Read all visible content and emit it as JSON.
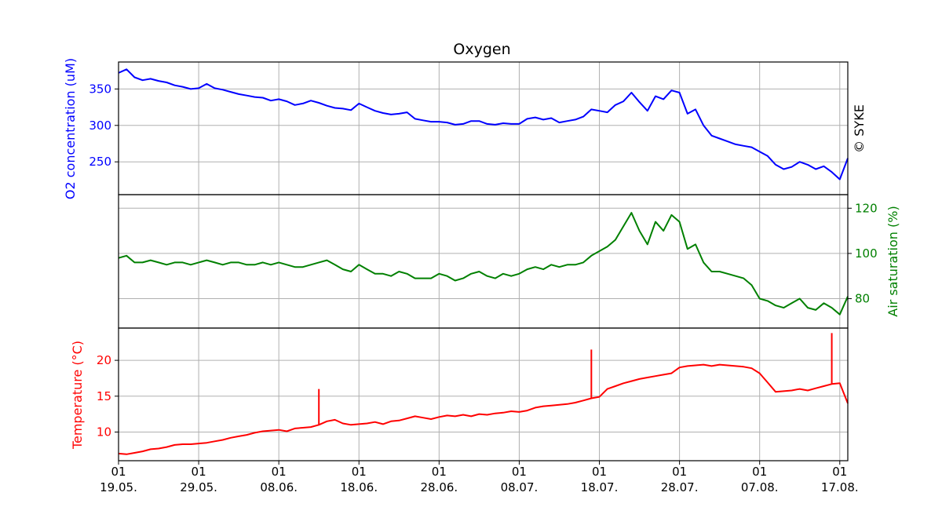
{
  "chart_data": {
    "type": "line",
    "title": "Oxygen",
    "watermark": "© SYKE",
    "x_axis": {
      "start": "2019-05-19",
      "end": "2019-08-18",
      "tick_dates": [
        "2019-05-19",
        "2019-05-29",
        "2019-06-08",
        "2019-06-18",
        "2019-06-28",
        "2019-07-08",
        "2019-07-18",
        "2019-07-28",
        "2019-08-07",
        "2019-08-17"
      ],
      "tick_top_labels": [
        "01",
        "01",
        "01",
        "01",
        "01",
        "01",
        "01",
        "01",
        "01",
        "01"
      ],
      "tick_bottom_labels": [
        "19.05.",
        "29.05.",
        "08.06.",
        "18.06.",
        "28.06.",
        "08.07.",
        "18.07.",
        "28.07.",
        "07.08.",
        "17.08."
      ],
      "grid": true
    },
    "panels": [
      {
        "name": "o2",
        "ylabel": "O2 concentration (uM)",
        "color": "#0000ff",
        "ylim": [
          205,
          387
        ],
        "yticks": [
          250,
          300,
          350
        ],
        "axis_side": "left",
        "series": {
          "x": [
            "2019-05-19",
            "2019-05-20",
            "2019-05-21",
            "2019-05-22",
            "2019-05-23",
            "2019-05-24",
            "2019-05-25",
            "2019-05-26",
            "2019-05-27",
            "2019-05-28",
            "2019-05-29",
            "2019-05-30",
            "2019-05-31",
            "2019-06-01",
            "2019-06-02",
            "2019-06-03",
            "2019-06-04",
            "2019-06-05",
            "2019-06-06",
            "2019-06-07",
            "2019-06-08",
            "2019-06-09",
            "2019-06-10",
            "2019-06-11",
            "2019-06-12",
            "2019-06-13",
            "2019-06-14",
            "2019-06-15",
            "2019-06-16",
            "2019-06-17",
            "2019-06-18",
            "2019-06-19",
            "2019-06-20",
            "2019-06-21",
            "2019-06-22",
            "2019-06-23",
            "2019-06-24",
            "2019-06-25",
            "2019-06-26",
            "2019-06-27",
            "2019-06-28",
            "2019-06-29",
            "2019-06-30",
            "2019-07-01",
            "2019-07-02",
            "2019-07-03",
            "2019-07-04",
            "2019-07-05",
            "2019-07-06",
            "2019-07-07",
            "2019-07-08",
            "2019-07-09",
            "2019-07-10",
            "2019-07-11",
            "2019-07-12",
            "2019-07-13",
            "2019-07-14",
            "2019-07-15",
            "2019-07-16",
            "2019-07-17",
            "2019-07-18",
            "2019-07-19",
            "2019-07-20",
            "2019-07-21",
            "2019-07-22",
            "2019-07-23",
            "2019-07-24",
            "2019-07-25",
            "2019-07-26",
            "2019-07-27",
            "2019-07-28",
            "2019-07-29",
            "2019-07-30",
            "2019-07-31",
            "2019-08-01",
            "2019-08-02",
            "2019-08-03",
            "2019-08-04",
            "2019-08-05",
            "2019-08-06",
            "2019-08-07",
            "2019-08-08",
            "2019-08-09",
            "2019-08-10",
            "2019-08-11",
            "2019-08-12",
            "2019-08-13",
            "2019-08-14",
            "2019-08-15",
            "2019-08-16",
            "2019-08-17",
            "2019-08-18"
          ],
          "y": [
            372,
            377,
            366,
            362,
            364,
            361,
            359,
            355,
            353,
            350,
            351,
            357,
            351,
            349,
            346,
            343,
            341,
            339,
            338,
            334,
            336,
            333,
            328,
            330,
            334,
            331,
            327,
            324,
            323,
            321,
            330,
            325,
            320,
            317,
            315,
            316,
            318,
            309,
            307,
            305,
            305,
            304,
            301,
            302,
            306,
            306,
            302,
            301,
            303,
            302,
            302,
            309,
            311,
            308,
            310,
            304,
            306,
            308,
            312,
            322,
            320,
            318,
            328,
            333,
            345,
            332,
            320,
            340,
            336,
            348,
            345,
            316,
            322,
            300,
            286,
            282,
            278,
            274,
            272,
            270,
            264,
            258,
            246,
            240,
            243,
            250,
            246,
            240,
            244,
            236,
            226,
            255
          ]
        }
      },
      {
        "name": "air_saturation",
        "ylabel": "Air saturation (%)",
        "color": "#008000",
        "ylim": [
          67,
          126
        ],
        "yticks": [
          80,
          100,
          120
        ],
        "axis_side": "right",
        "series": {
          "x": [
            "2019-05-19",
            "2019-05-20",
            "2019-05-21",
            "2019-05-22",
            "2019-05-23",
            "2019-05-24",
            "2019-05-25",
            "2019-05-26",
            "2019-05-27",
            "2019-05-28",
            "2019-05-29",
            "2019-05-30",
            "2019-05-31",
            "2019-06-01",
            "2019-06-02",
            "2019-06-03",
            "2019-06-04",
            "2019-06-05",
            "2019-06-06",
            "2019-06-07",
            "2019-06-08",
            "2019-06-09",
            "2019-06-10",
            "2019-06-11",
            "2019-06-12",
            "2019-06-13",
            "2019-06-14",
            "2019-06-15",
            "2019-06-16",
            "2019-06-17",
            "2019-06-18",
            "2019-06-19",
            "2019-06-20",
            "2019-06-21",
            "2019-06-22",
            "2019-06-23",
            "2019-06-24",
            "2019-06-25",
            "2019-06-26",
            "2019-06-27",
            "2019-06-28",
            "2019-06-29",
            "2019-06-30",
            "2019-07-01",
            "2019-07-02",
            "2019-07-03",
            "2019-07-04",
            "2019-07-05",
            "2019-07-06",
            "2019-07-07",
            "2019-07-08",
            "2019-07-09",
            "2019-07-10",
            "2019-07-11",
            "2019-07-12",
            "2019-07-13",
            "2019-07-14",
            "2019-07-15",
            "2019-07-16",
            "2019-07-17",
            "2019-07-18",
            "2019-07-19",
            "2019-07-20",
            "2019-07-21",
            "2019-07-22",
            "2019-07-23",
            "2019-07-24",
            "2019-07-25",
            "2019-07-26",
            "2019-07-27",
            "2019-07-28",
            "2019-07-29",
            "2019-07-30",
            "2019-07-31",
            "2019-08-01",
            "2019-08-02",
            "2019-08-03",
            "2019-08-04",
            "2019-08-05",
            "2019-08-06",
            "2019-08-07",
            "2019-08-08",
            "2019-08-09",
            "2019-08-10",
            "2019-08-11",
            "2019-08-12",
            "2019-08-13",
            "2019-08-14",
            "2019-08-15",
            "2019-08-16",
            "2019-08-17",
            "2019-08-18"
          ],
          "y": [
            98,
            99,
            96,
            96,
            97,
            96,
            95,
            96,
            96,
            95,
            96,
            97,
            96,
            95,
            96,
            96,
            95,
            95,
            96,
            95,
            96,
            95,
            94,
            94,
            95,
            96,
            97,
            95,
            93,
            92,
            95,
            93,
            91,
            91,
            90,
            92,
            91,
            89,
            89,
            89,
            91,
            90,
            88,
            89,
            91,
            92,
            90,
            89,
            91,
            90,
            91,
            93,
            94,
            93,
            95,
            94,
            95,
            95,
            96,
            99,
            101,
            103,
            106,
            112,
            118,
            110,
            104,
            114,
            110,
            117,
            114,
            102,
            104,
            96,
            92,
            92,
            91,
            90,
            89,
            86,
            80,
            79,
            77,
            76,
            78,
            80,
            76,
            75,
            78,
            76,
            73,
            81
          ]
        }
      },
      {
        "name": "temperature",
        "ylabel": "Temperature (°C)",
        "color": "#ff0000",
        "ylim": [
          6,
          24.5
        ],
        "yticks": [
          10,
          15,
          20
        ],
        "axis_side": "left",
        "series": {
          "x": [
            "2019-05-19",
            "2019-05-20",
            "2019-05-21",
            "2019-05-22",
            "2019-05-23",
            "2019-05-24",
            "2019-05-25",
            "2019-05-26",
            "2019-05-27",
            "2019-05-28",
            "2019-05-29",
            "2019-05-30",
            "2019-05-31",
            "2019-06-01",
            "2019-06-02",
            "2019-06-03",
            "2019-06-04",
            "2019-06-05",
            "2019-06-06",
            "2019-06-07",
            "2019-06-08",
            "2019-06-09",
            "2019-06-10",
            "2019-06-11",
            "2019-06-12",
            "2019-06-13",
            "2019-06-14",
            "2019-06-15",
            "2019-06-16",
            "2019-06-17",
            "2019-06-18",
            "2019-06-19",
            "2019-06-20",
            "2019-06-21",
            "2019-06-22",
            "2019-06-23",
            "2019-06-24",
            "2019-06-25",
            "2019-06-26",
            "2019-06-27",
            "2019-06-28",
            "2019-06-29",
            "2019-06-30",
            "2019-07-01",
            "2019-07-02",
            "2019-07-03",
            "2019-07-04",
            "2019-07-05",
            "2019-07-06",
            "2019-07-07",
            "2019-07-08",
            "2019-07-09",
            "2019-07-10",
            "2019-07-11",
            "2019-07-12",
            "2019-07-13",
            "2019-07-14",
            "2019-07-15",
            "2019-07-16",
            "2019-07-17",
            "2019-07-18",
            "2019-07-19",
            "2019-07-20",
            "2019-07-21",
            "2019-07-22",
            "2019-07-23",
            "2019-07-24",
            "2019-07-25",
            "2019-07-26",
            "2019-07-27",
            "2019-07-28",
            "2019-07-29",
            "2019-07-30",
            "2019-07-31",
            "2019-08-01",
            "2019-08-02",
            "2019-08-03",
            "2019-08-04",
            "2019-08-05",
            "2019-08-06",
            "2019-08-07",
            "2019-08-08",
            "2019-08-09",
            "2019-08-10",
            "2019-08-11",
            "2019-08-12",
            "2019-08-13",
            "2019-08-14",
            "2019-08-15",
            "2019-08-16",
            "2019-08-17",
            "2019-08-18"
          ],
          "y": [
            7.0,
            6.9,
            7.1,
            7.3,
            7.6,
            7.7,
            7.9,
            8.2,
            8.3,
            8.3,
            8.4,
            8.5,
            8.7,
            8.9,
            9.2,
            9.4,
            9.6,
            9.9,
            10.1,
            10.2,
            10.3,
            10.1,
            10.5,
            10.6,
            10.7,
            11.0,
            11.5,
            11.7,
            11.2,
            11.0,
            11.1,
            11.2,
            11.4,
            11.1,
            11.5,
            11.6,
            11.9,
            12.2,
            12.0,
            11.8,
            12.1,
            12.3,
            12.2,
            12.4,
            12.2,
            12.5,
            12.4,
            12.6,
            12.7,
            12.9,
            12.8,
            13.0,
            13.4,
            13.6,
            13.7,
            13.8,
            13.9,
            14.1,
            14.4,
            14.7,
            14.9,
            16.0,
            16.4,
            16.8,
            17.1,
            17.4,
            17.6,
            17.8,
            18.0,
            18.2,
            19.0,
            19.2,
            19.3,
            19.4,
            19.2,
            19.4,
            19.3,
            19.2,
            19.1,
            18.9,
            18.2,
            16.9,
            15.6,
            15.7,
            15.8,
            16.0,
            15.8,
            16.1,
            16.4,
            16.7,
            16.8,
            14.0
          ]
        },
        "spikes": [
          {
            "x": "2019-06-13",
            "y": 16.0
          },
          {
            "x": "2019-07-17",
            "y": 21.5
          },
          {
            "x": "2019-08-16",
            "y": 23.8
          }
        ]
      }
    ]
  }
}
